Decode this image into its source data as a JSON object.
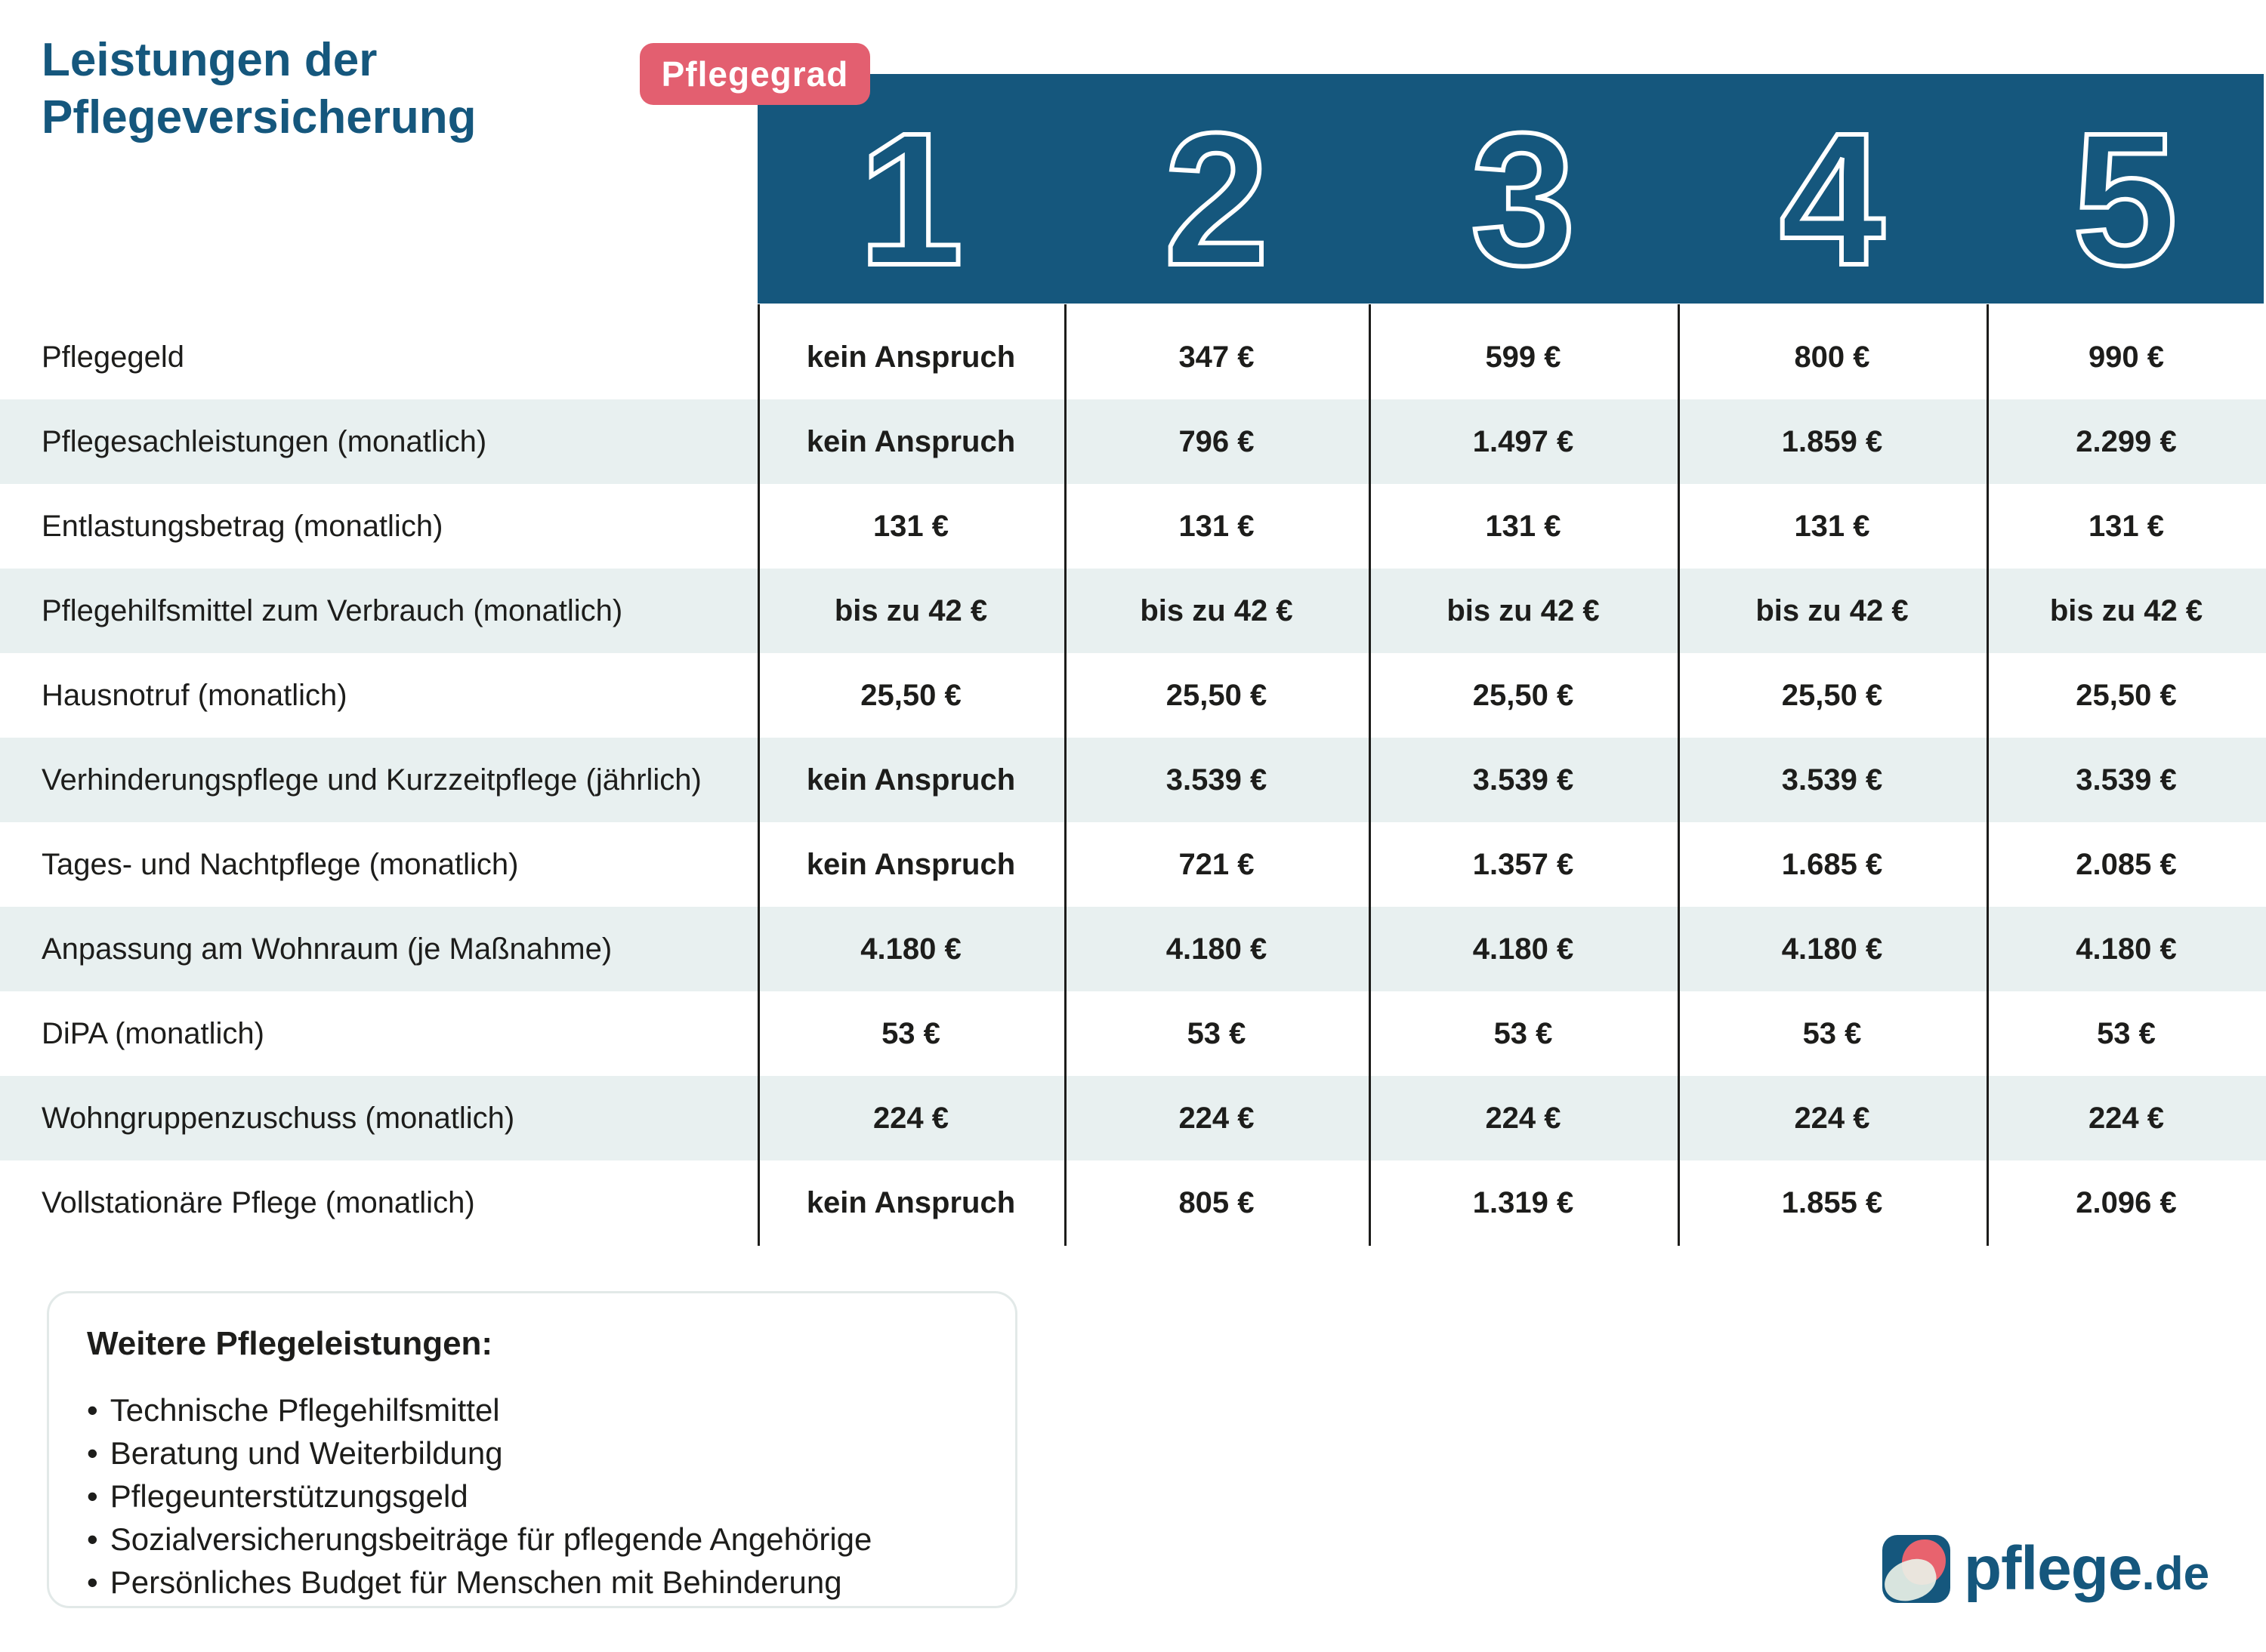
{
  "title": {
    "line1": "Leistungen der",
    "line2": "Pflegeversicherung"
  },
  "badge_label": "Pflegegrad",
  "grades": [
    "1",
    "2",
    "3",
    "4",
    "5"
  ],
  "table": {
    "rows": [
      {
        "label": "Pflegegeld",
        "values": [
          "kein Anspruch",
          "347 €",
          "599 €",
          "800 €",
          "990 €"
        ]
      },
      {
        "label": "Pflegesachleistungen (monatlich)",
        "values": [
          "kein Anspruch",
          "796 €",
          "1.497 €",
          "1.859 €",
          "2.299 €"
        ]
      },
      {
        "label": "Entlastungsbetrag (monatlich)",
        "values": [
          "131 €",
          "131 €",
          "131 €",
          "131 €",
          "131 €"
        ]
      },
      {
        "label": "Pflegehilfsmittel zum Verbrauch (monatlich)",
        "values": [
          "bis zu 42 €",
          "bis zu 42 €",
          "bis zu 42 €",
          "bis zu 42 €",
          "bis zu 42 €"
        ]
      },
      {
        "label": "Hausnotruf (monatlich)",
        "values": [
          "25,50 €",
          "25,50 €",
          "25,50 €",
          "25,50 €",
          "25,50 €"
        ]
      },
      {
        "label": "Verhinderungspflege und Kurzzeitpflege (jährlich)",
        "values": [
          "kein Anspruch",
          "3.539 €",
          "3.539 €",
          "3.539 €",
          "3.539 €"
        ]
      },
      {
        "label": "Tages- und Nachtpflege (monatlich)",
        "values": [
          "kein Anspruch",
          "721 €",
          "1.357 €",
          "1.685 €",
          "2.085 €"
        ]
      },
      {
        "label": "Anpassung am Wohnraum (je Maßnahme)",
        "values": [
          "4.180 €",
          "4.180 €",
          "4.180 €",
          "4.180 €",
          "4.180 €"
        ]
      },
      {
        "label": "DiPA (monatlich)",
        "values": [
          "53 €",
          "53 €",
          "53 €",
          "53 €",
          "53 €"
        ]
      },
      {
        "label": "Wohngruppenzuschuss (monatlich)",
        "values": [
          "224 €",
          "224 €",
          "224 €",
          "224 €",
          "224 €"
        ]
      },
      {
        "label": "Vollstationäre Pflege (monatlich)",
        "values": [
          "kein Anspruch",
          "805 €",
          "1.319 €",
          "1.855 €",
          "2.096 €"
        ]
      }
    ]
  },
  "info_box": {
    "heading": "Weitere Pflegeleistungen:",
    "items": [
      "Technische Pflegehilfsmittel",
      "Beratung und Weiterbildung",
      "Pflegeunterstützungsgeld",
      "Sozialversicherungsbeiträge für pflegende Angehörige",
      "Persönliches Budget für Menschen mit Behinderung"
    ]
  },
  "logo": {
    "name": "pflege",
    "tld": ".de"
  },
  "colors": {
    "brand_blue": "#15577d",
    "badge_pink": "#e35f70",
    "row_stripe": "#e8f0f0",
    "text_dark": "#1d1d1b",
    "box_border": "#e2e9e8",
    "logo_coral": "#e8636e",
    "logo_mint": "#e9f0e6"
  },
  "chart_data": {
    "type": "table",
    "title": "Leistungen der Pflegeversicherung",
    "columns": [
      "Pflegegrad 1",
      "Pflegegrad 2",
      "Pflegegrad 3",
      "Pflegegrad 4",
      "Pflegegrad 5"
    ],
    "rows": [
      {
        "label": "Pflegegeld",
        "values": [
          "kein Anspruch",
          "347 €",
          "599 €",
          "800 €",
          "990 €"
        ]
      },
      {
        "label": "Pflegesachleistungen (monatlich)",
        "values": [
          "kein Anspruch",
          "796 €",
          "1.497 €",
          "1.859 €",
          "2.299 €"
        ]
      },
      {
        "label": "Entlastungsbetrag (monatlich)",
        "values": [
          "131 €",
          "131 €",
          "131 €",
          "131 €",
          "131 €"
        ]
      },
      {
        "label": "Pflegehilfsmittel zum Verbrauch (monatlich)",
        "values": [
          "bis zu 42 €",
          "bis zu 42 €",
          "bis zu 42 €",
          "bis zu 42 €",
          "bis zu 42 €"
        ]
      },
      {
        "label": "Hausnotruf (monatlich)",
        "values": [
          "25,50 €",
          "25,50 €",
          "25,50 €",
          "25,50 €",
          "25,50 €"
        ]
      },
      {
        "label": "Verhinderungspflege und Kurzzeitpflege (jährlich)",
        "values": [
          "kein Anspruch",
          "3.539 €",
          "3.539 €",
          "3.539 €",
          "3.539 €"
        ]
      },
      {
        "label": "Tages- und Nachtpflege (monatlich)",
        "values": [
          "kein Anspruch",
          "721 €",
          "1.357 €",
          "1.685 €",
          "2.085 €"
        ]
      },
      {
        "label": "Anpassung am Wohnraum (je Maßnahme)",
        "values": [
          "4.180 €",
          "4.180 €",
          "4.180 €",
          "4.180 €",
          "4.180 €"
        ]
      },
      {
        "label": "DiPA (monatlich)",
        "values": [
          "53 €",
          "53 €",
          "53 €",
          "53 €",
          "53 €"
        ]
      },
      {
        "label": "Wohngruppenzuschuss (monatlich)",
        "values": [
          "224 €",
          "224 €",
          "224 €",
          "224 €",
          "224 €"
        ]
      },
      {
        "label": "Vollstationäre Pflege (monatlich)",
        "values": [
          "kein Anspruch",
          "805 €",
          "1.319 €",
          "1.855 €",
          "2.096 €"
        ]
      }
    ]
  }
}
